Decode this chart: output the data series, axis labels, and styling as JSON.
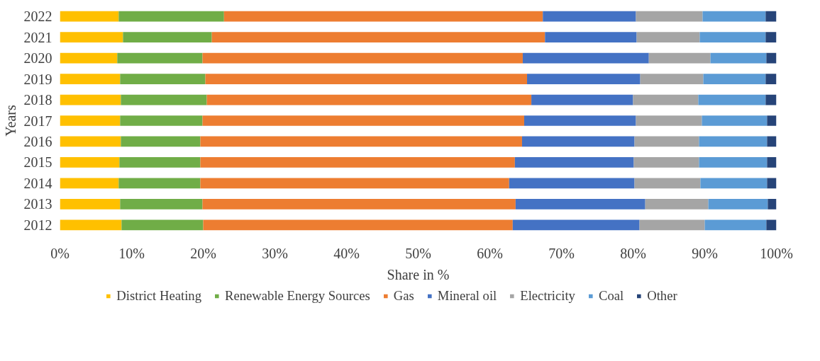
{
  "chart_data": {
    "type": "bar",
    "orientation": "horizontal",
    "stacked": true,
    "xlabel": "Share in %",
    "ylabel": "Years",
    "categories": [
      "2022",
      "2021",
      "2020",
      "2019",
      "2018",
      "2017",
      "2016",
      "2015",
      "2014",
      "2013",
      "2012"
    ],
    "xlim": [
      0,
      100
    ],
    "xticks": [
      {
        "value": 0,
        "label": "0%"
      },
      {
        "value": 10,
        "label": "10%"
      },
      {
        "value": 20,
        "label": "20%"
      },
      {
        "value": 30,
        "label": "30%"
      },
      {
        "value": 40,
        "label": "40%"
      },
      {
        "value": 50,
        "label": "50%"
      },
      {
        "value": 60,
        "label": "60%"
      },
      {
        "value": 70,
        "label": "70%"
      },
      {
        "value": 80,
        "label": "80%"
      },
      {
        "value": 90,
        "label": "90%"
      },
      {
        "value": 100,
        "label": "100%"
      }
    ],
    "grid": false,
    "legend": "bottom",
    "series": [
      {
        "name": "District Heating",
        "color": "#ffc000",
        "values": [
          8.2,
          8.8,
          8.0,
          8.4,
          8.5,
          8.4,
          8.5,
          8.3,
          8.2,
          8.4,
          8.6
        ]
      },
      {
        "name": "Renewable Energy Sources",
        "color": "#70ad47",
        "values": [
          14.7,
          12.4,
          11.9,
          11.9,
          12.0,
          11.5,
          11.1,
          11.3,
          11.4,
          11.5,
          11.4
        ]
      },
      {
        "name": "Gas",
        "color": "#ed7d31",
        "values": [
          44.5,
          46.5,
          44.7,
          44.9,
          45.3,
          44.9,
          44.9,
          43.9,
          43.1,
          43.7,
          43.2
        ]
      },
      {
        "name": "Mineral oil",
        "color": "#4472c4",
        "values": [
          13.0,
          12.8,
          17.6,
          15.8,
          14.2,
          15.6,
          15.7,
          16.6,
          17.5,
          18.1,
          17.7
        ]
      },
      {
        "name": "Electricity",
        "color": "#a5a5a5",
        "values": [
          9.3,
          8.8,
          8.6,
          8.8,
          9.1,
          9.2,
          9.0,
          9.1,
          9.2,
          8.8,
          9.1
        ]
      },
      {
        "name": "Coal",
        "color": "#5b9bd5",
        "values": [
          8.8,
          9.2,
          7.8,
          8.7,
          9.4,
          9.1,
          9.5,
          9.5,
          9.3,
          8.3,
          8.6
        ]
      },
      {
        "name": "Other",
        "color": "#264478",
        "values": [
          1.5,
          1.5,
          1.4,
          1.5,
          1.5,
          1.3,
          1.3,
          1.3,
          1.3,
          1.2,
          1.4
        ]
      }
    ]
  }
}
